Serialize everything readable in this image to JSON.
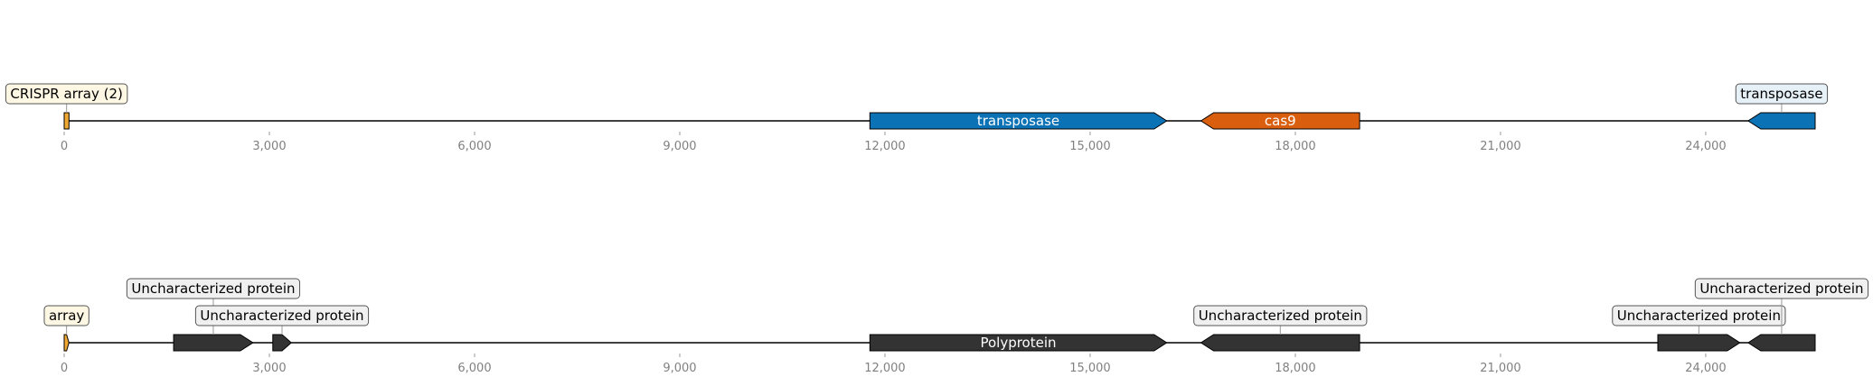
{
  "tracks": [
    {
      "axis": {
        "min": 0,
        "max": 25600,
        "ticks": [
          {
            "value": 0,
            "label": "0"
          },
          {
            "value": 3000,
            "label": "3,000"
          },
          {
            "value": 6000,
            "label": "6,000"
          },
          {
            "value": 9000,
            "label": "9,000"
          },
          {
            "value": 12000,
            "label": "12,000"
          },
          {
            "value": 15000,
            "label": "15,000"
          },
          {
            "value": 18000,
            "label": "18,000"
          },
          {
            "value": 21000,
            "label": "21,000"
          },
          {
            "value": 24000,
            "label": "24,000"
          }
        ]
      },
      "features": [
        {
          "start": 0,
          "end": 70,
          "strand": 0,
          "color": "#f0a830",
          "inner_label": "",
          "box_label": "CRISPR array (2)",
          "box_fill": "#fdf7e3",
          "box_level": 0
        },
        {
          "start": 11780,
          "end": 16120,
          "strand": 1,
          "color": "#0b72b5",
          "inner_label": "transposase",
          "box_label": "",
          "box_fill": "",
          "box_level": 0
        },
        {
          "start": 16620,
          "end": 18940,
          "strand": -1,
          "color": "#d95f0e",
          "inner_label": "cas9",
          "box_label": "",
          "box_fill": "",
          "box_level": 0
        },
        {
          "start": 24620,
          "end": 25600,
          "strand": -1,
          "color": "#0b72b5",
          "inner_label": "",
          "box_label": "transposase",
          "box_fill": "#e6f0f7",
          "box_level": 0
        }
      ]
    },
    {
      "axis": {
        "min": 0,
        "max": 25600,
        "ticks": [
          {
            "value": 0,
            "label": "0"
          },
          {
            "value": 3000,
            "label": "3,000"
          },
          {
            "value": 6000,
            "label": "6,000"
          },
          {
            "value": 9000,
            "label": "9,000"
          },
          {
            "value": 12000,
            "label": "12,000"
          },
          {
            "value": 15000,
            "label": "15,000"
          },
          {
            "value": 18000,
            "label": "18,000"
          },
          {
            "value": 21000,
            "label": "21,000"
          },
          {
            "value": 24000,
            "label": "24,000"
          }
        ]
      },
      "features": [
        {
          "start": 0,
          "end": 70,
          "strand": 1,
          "color": "#f0a830",
          "inner_label": "",
          "box_label": "array",
          "box_fill": "#fdf7e3",
          "box_level": 0
        },
        {
          "start": 1600,
          "end": 2760,
          "strand": 1,
          "color": "#333333",
          "inner_label": "",
          "box_label": "Uncharacterized protein",
          "box_fill": "#f0f0f0",
          "box_level": 1
        },
        {
          "start": 3050,
          "end": 3320,
          "strand": 1,
          "color": "#333333",
          "inner_label": "",
          "box_label": "Uncharacterized protein",
          "box_fill": "#f0f0f0",
          "box_level": 0
        },
        {
          "start": 11780,
          "end": 16120,
          "strand": 1,
          "color": "#333333",
          "inner_label": "Polyprotein",
          "box_label": "",
          "box_fill": "",
          "box_level": 0
        },
        {
          "start": 16620,
          "end": 18940,
          "strand": -1,
          "color": "#333333",
          "inner_label": "",
          "box_label": "Uncharacterized protein",
          "box_fill": "#f0f0f0",
          "box_level": 0
        },
        {
          "start": 23300,
          "end": 24500,
          "strand": 1,
          "color": "#333333",
          "inner_label": "",
          "box_label": "Uncharacterized protein",
          "box_fill": "#f0f0f0",
          "box_level": 0
        },
        {
          "start": 24620,
          "end": 25600,
          "strand": -1,
          "color": "#333333",
          "inner_label": "",
          "box_label": "Uncharacterized protein",
          "box_fill": "#f0f0f0",
          "box_level": 1
        }
      ]
    }
  ]
}
